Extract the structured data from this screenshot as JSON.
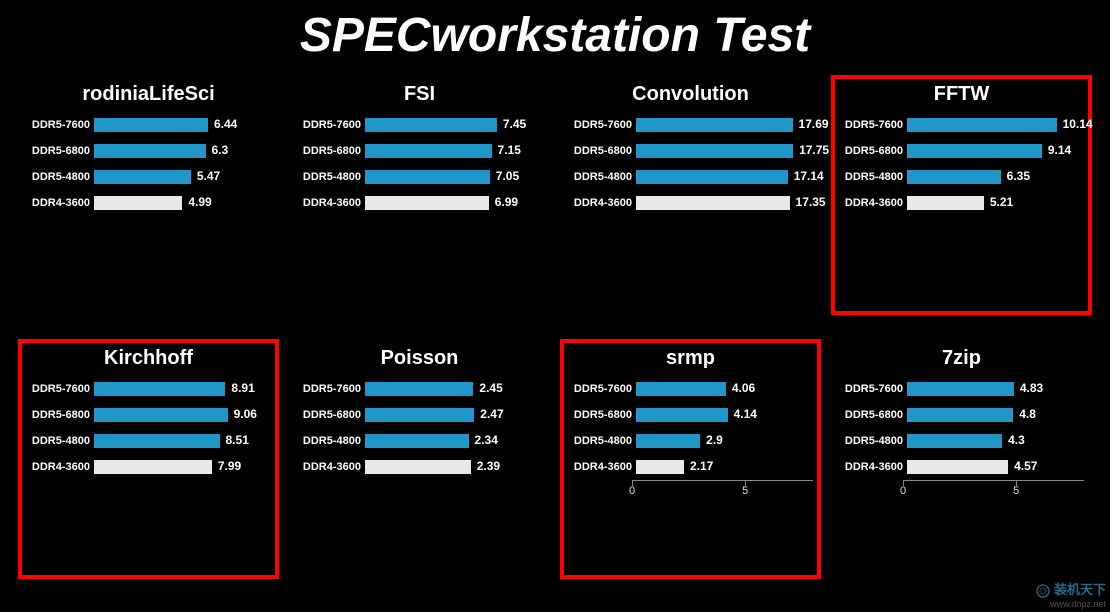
{
  "title": "SPECworkstation Test",
  "title_fontsize": 48,
  "background_color": "#000000",
  "text_color": "#ffffff",
  "bar_colors": {
    "ddr5": "#2196c9",
    "ddr4": "#e8e8e8"
  },
  "highlight_color": "#ff0000",
  "panel_title_fontsize": 20,
  "label_fontsize": 11,
  "value_fontsize": 12,
  "labels": [
    "DDR5-7600",
    "DDR5-6800",
    "DDR5-4800",
    "DDR4-3600"
  ],
  "bar_types": [
    "ddr5",
    "ddr5",
    "ddr5",
    "ddr4"
  ],
  "charts": [
    {
      "title": "rodiniaLifeSci",
      "highlight": false,
      "xmax": 10,
      "values": [
        6.44,
        6.3,
        5.47,
        4.99
      ],
      "xticks": null
    },
    {
      "title": "FSI",
      "highlight": false,
      "xmax": 10,
      "values": [
        7.45,
        7.15,
        7.05,
        6.99
      ],
      "xticks": null
    },
    {
      "title": "Convolution",
      "highlight": false,
      "xmax": 20,
      "values": [
        17.69,
        17.75,
        17.14,
        17.35
      ],
      "xticks": null
    },
    {
      "title": "FFTW",
      "highlight": true,
      "xmax": 12,
      "values": [
        10.14,
        9.14,
        6.35,
        5.21
      ],
      "xticks": null
    },
    {
      "title": "Kirchhoff",
      "highlight": true,
      "xmax": 12,
      "values": [
        8.91,
        9.06,
        8.51,
        7.99
      ],
      "xticks": null
    },
    {
      "title": "Poisson",
      "highlight": false,
      "xmax": 4,
      "values": [
        2.45,
        2.47,
        2.34,
        2.39
      ],
      "xticks": null
    },
    {
      "title": "srmp",
      "highlight": true,
      "xmax": 8,
      "values": [
        4.06,
        4.14,
        2.9,
        2.17
      ],
      "xticks": [
        0,
        5
      ]
    },
    {
      "title": "7zip",
      "highlight": false,
      "xmax": 8,
      "values": [
        4.83,
        4.8,
        4.3,
        4.57
      ],
      "xticks": [
        0,
        5
      ]
    }
  ],
  "watermark": {
    "brand": "装机天下",
    "url": "www.dnpz.net"
  }
}
